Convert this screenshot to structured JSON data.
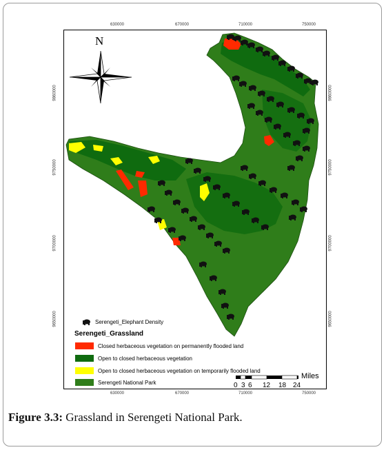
{
  "figure": {
    "caption_label": "Figure 3.3:",
    "caption_text": " Grassland in Serengeti National Park."
  },
  "axes": {
    "top_ticks": [
      "630000",
      "670000",
      "710000",
      "750000"
    ],
    "bottom_ticks": [
      "630000",
      "670000",
      "710000",
      "750000"
    ],
    "left_ticks": [
      "9860000",
      "9750000",
      "9700000",
      "9650000"
    ],
    "right_ticks": [
      "9860000",
      "9750000",
      "9700000",
      "9650000"
    ]
  },
  "north_arrow": {
    "label": "N"
  },
  "legend": {
    "point_layer": "Serengeti_Elephant Density",
    "group_title": "Serengeti_Grassland",
    "items": [
      {
        "label": "Closed herbaceous vegetation on permanently flooded land",
        "color": "#ff2a00"
      },
      {
        "label": "Open to closed herbaceous vegetation",
        "color": "#0f6b0f"
      },
      {
        "label": "Open to closed herbaceous vegetation on temporarily flooded land",
        "color": "#ffff00"
      },
      {
        "label": "Serengeti National Park",
        "color": "#2f7d1a"
      }
    ]
  },
  "scale_bar": {
    "unit": "Miles",
    "labels": [
      "0",
      "3",
      "6",
      "12",
      "18",
      "24"
    ]
  },
  "colors": {
    "park_green": "#2f7d1a",
    "dark_green": "#0f6b0f",
    "flood_red": "#ff2a00",
    "temp_yellow": "#ffff00",
    "elephant": "#111111"
  }
}
